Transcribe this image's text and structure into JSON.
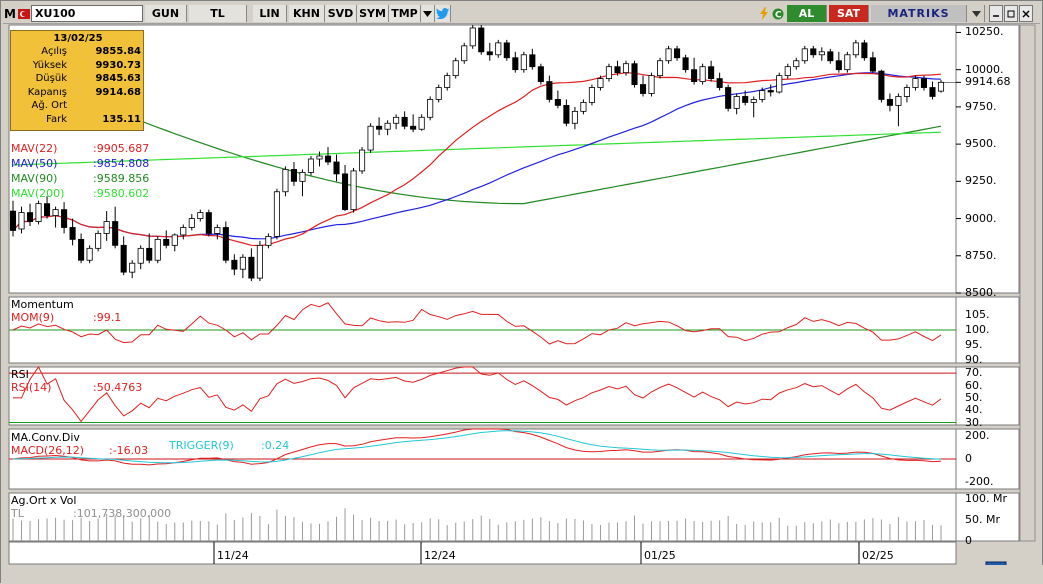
{
  "toolbar": {
    "logo": "M",
    "symbol": "XU100",
    "buttons": [
      "GUN",
      "TL",
      "LIN",
      "KHN",
      "SVD",
      "SYM",
      "TMP"
    ],
    "al": "AL",
    "sat": "SAT",
    "brand": "MATRIKS",
    "colors": {
      "al": "#2e8b2e",
      "sat": "#c8281e",
      "brand_bg": "#c0c0c0"
    }
  },
  "infobox": {
    "date": "13/02/25",
    "rows": [
      {
        "k": "Açılış",
        "v": "9855.84"
      },
      {
        "k": "Yüksek",
        "v": "9930.73"
      },
      {
        "k": "Düşük",
        "v": "9845.63"
      },
      {
        "k": "Kapanış",
        "v": "9914.68"
      },
      {
        "k": "Ağ. Ort",
        "v": ""
      },
      {
        "k": "Fark",
        "v": "135.11"
      }
    ]
  },
  "indicators": {
    "mav22": {
      "label": "MAV(22)",
      "value": ":9905.687",
      "color": "#e02020"
    },
    "mav50": {
      "label": "MAV(50)",
      "value": ":9854.808",
      "color": "#2020e0"
    },
    "mav90": {
      "label": "MAV(90)",
      "value": ":9589.856",
      "color": "#208a20"
    },
    "mav200": {
      "label": "MAV(200)",
      "value": ":9580.602",
      "color": "#30e030"
    }
  },
  "price_axis": {
    "ticks": [
      "10250.",
      "10000.",
      "9914.68",
      "9750.",
      "9500.",
      "9250.",
      "9000.",
      "8750.",
      "8500."
    ],
    "current": "9914.68"
  },
  "momentum": {
    "title": "Momentum",
    "label": "MOM(9)",
    "value": ":99.1",
    "ticks": [
      "105.",
      "100.",
      "95.",
      "90."
    ]
  },
  "rsi": {
    "title": "RSI",
    "label": "RSI(14)",
    "value": ":50.4763",
    "ticks": [
      "70.",
      "60.",
      "50.",
      "40.",
      "30."
    ]
  },
  "macd": {
    "title": "MA.Conv.Div",
    "label": "MACD(26,12)",
    "value": ":-16.03",
    "trigger_label": "TRIGGER(9)",
    "trigger_value": ":0.24",
    "ticks": [
      "200.",
      "0",
      "-200."
    ]
  },
  "volume": {
    "title": "Ag.Ort x Vol",
    "label": "TL",
    "value": ":101,738,300.000",
    "ticks": [
      "100. Mr",
      "50. Mr",
      "0"
    ]
  },
  "date_axis": [
    "11/24",
    "12/24",
    "01/25",
    "02/25"
  ],
  "chart_data": {
    "type": "candlestick",
    "title": "XU100",
    "candles": [
      [
        9050,
        9120,
        8880,
        8920
      ],
      [
        8930,
        9080,
        8900,
        9040
      ],
      [
        9040,
        9100,
        8950,
        8980
      ],
      [
        8980,
        9120,
        8960,
        9100
      ],
      [
        9100,
        9150,
        9000,
        9020
      ],
      [
        9020,
        9080,
        8940,
        9060
      ],
      [
        9060,
        9110,
        8900,
        8940
      ],
      [
        8940,
        9000,
        8820,
        8860
      ],
      [
        8860,
        8900,
        8700,
        8720
      ],
      [
        8720,
        8820,
        8700,
        8800
      ],
      [
        8800,
        8920,
        8780,
        8900
      ],
      [
        8900,
        9050,
        8850,
        8980
      ],
      [
        8980,
        9080,
        8800,
        8820
      ],
      [
        8820,
        8880,
        8620,
        8640
      ],
      [
        8640,
        8720,
        8600,
        8700
      ],
      [
        8700,
        8820,
        8660,
        8800
      ],
      [
        8800,
        8900,
        8700,
        8720
      ],
      [
        8720,
        8880,
        8700,
        8860
      ],
      [
        8860,
        8920,
        8800,
        8820
      ],
      [
        8820,
        8900,
        8780,
        8890
      ],
      [
        8890,
        8960,
        8860,
        8940
      ],
      [
        8940,
        9030,
        8920,
        9000
      ],
      [
        9000,
        9060,
        8980,
        9040
      ],
      [
        9040,
        9060,
        8880,
        8900
      ],
      [
        8900,
        8960,
        8860,
        8940
      ],
      [
        8940,
        8980,
        8700,
        8720
      ],
      [
        8720,
        8760,
        8620,
        8660
      ],
      [
        8660,
        8760,
        8600,
        8740
      ],
      [
        8740,
        8800,
        8580,
        8600
      ],
      [
        8600,
        8850,
        8580,
        8820
      ],
      [
        8820,
        8900,
        8800,
        8880
      ],
      [
        8880,
        9200,
        8860,
        9180
      ],
      [
        9180,
        9350,
        9150,
        9330
      ],
      [
        9330,
        9380,
        9220,
        9250
      ],
      [
        9250,
        9330,
        9150,
        9310
      ],
      [
        9310,
        9420,
        9290,
        9400
      ],
      [
        9400,
        9450,
        9350,
        9420
      ],
      [
        9420,
        9480,
        9360,
        9380
      ],
      [
        9380,
        9430,
        9250,
        9300
      ],
      [
        9300,
        9360,
        9050,
        9060
      ],
      [
        9060,
        9340,
        9040,
        9320
      ],
      [
        9320,
        9480,
        9300,
        9460
      ],
      [
        9460,
        9640,
        9440,
        9620
      ],
      [
        9620,
        9680,
        9560,
        9600
      ],
      [
        9600,
        9660,
        9560,
        9640
      ],
      [
        9640,
        9700,
        9600,
        9680
      ],
      [
        9680,
        9720,
        9600,
        9620
      ],
      [
        9620,
        9700,
        9580,
        9600
      ],
      [
        9600,
        9700,
        9590,
        9680
      ],
      [
        9680,
        9820,
        9660,
        9800
      ],
      [
        9800,
        9900,
        9780,
        9880
      ],
      [
        9880,
        9980,
        9860,
        9960
      ],
      [
        9960,
        10080,
        9940,
        10060
      ],
      [
        10060,
        10180,
        10040,
        10160
      ],
      [
        10160,
        10300,
        10140,
        10280
      ],
      [
        10280,
        10300,
        10100,
        10120
      ],
      [
        10120,
        10180,
        10060,
        10100
      ],
      [
        10100,
        10200,
        10080,
        10180
      ],
      [
        10180,
        10200,
        10060,
        10080
      ],
      [
        10080,
        10120,
        9980,
        10000
      ],
      [
        10000,
        10120,
        9980,
        10100
      ],
      [
        10100,
        10140,
        10000,
        10020
      ],
      [
        10020,
        10040,
        9900,
        9920
      ],
      [
        9920,
        9960,
        9780,
        9800
      ],
      [
        9800,
        9860,
        9740,
        9760
      ],
      [
        9760,
        9800,
        9620,
        9640
      ],
      [
        9640,
        9750,
        9600,
        9720
      ],
      [
        9720,
        9800,
        9700,
        9780
      ],
      [
        9780,
        9900,
        9760,
        9880
      ],
      [
        9880,
        9960,
        9860,
        9940
      ],
      [
        9940,
        10040,
        9920,
        10020
      ],
      [
        10020,
        10060,
        9960,
        9980
      ],
      [
        9980,
        10060,
        9960,
        10040
      ],
      [
        10040,
        10060,
        9880,
        9900
      ],
      [
        9900,
        9960,
        9820,
        9840
      ],
      [
        9840,
        9980,
        9820,
        9960
      ],
      [
        9960,
        10080,
        9940,
        10060
      ],
      [
        10060,
        10160,
        10040,
        10140
      ],
      [
        10140,
        10160,
        10060,
        10080
      ],
      [
        10080,
        10100,
        9980,
        10000
      ],
      [
        10000,
        10080,
        9900,
        9920
      ],
      [
        9920,
        10040,
        9900,
        10020
      ],
      [
        10020,
        10060,
        9920,
        9940
      ],
      [
        9940,
        9980,
        9860,
        9880
      ],
      [
        9880,
        9900,
        9720,
        9740
      ],
      [
        9740,
        9840,
        9700,
        9820
      ],
      [
        9820,
        9860,
        9760,
        9780
      ],
      [
        9780,
        9820,
        9680,
        9800
      ],
      [
        9800,
        9880,
        9780,
        9860
      ],
      [
        9860,
        9900,
        9820,
        9850
      ],
      [
        9850,
        9980,
        9840,
        9960
      ],
      [
        9960,
        10040,
        9940,
        10020
      ],
      [
        10020,
        10080,
        10000,
        10060
      ],
      [
        10060,
        10160,
        10040,
        10140
      ],
      [
        10140,
        10160,
        10080,
        10100
      ],
      [
        10100,
        10150,
        10060,
        10120
      ],
      [
        10120,
        10140,
        10040,
        10060
      ],
      [
        10060,
        10120,
        9980,
        10000
      ],
      [
        10000,
        10120,
        9980,
        10100
      ],
      [
        10100,
        10200,
        10080,
        10180
      ],
      [
        10180,
        10200,
        10060,
        10080
      ],
      [
        10080,
        10120,
        9980,
        9990
      ],
      [
        9990,
        10000,
        9780,
        9800
      ],
      [
        9800,
        9840,
        9720,
        9760
      ],
      [
        9760,
        9840,
        9620,
        9820
      ],
      [
        9820,
        9900,
        9780,
        9880
      ],
      [
        9880,
        9960,
        9860,
        9940
      ],
      [
        9940,
        9960,
        9860,
        9880
      ],
      [
        9880,
        9920,
        9800,
        9820
      ],
      [
        9856,
        9931,
        9846,
        9915
      ]
    ],
    "ylim": [
      8500,
      10300
    ],
    "series": [
      {
        "name": "MAV(22)",
        "last": 9905.687
      },
      {
        "name": "MAV(50)",
        "last": 9854.808
      },
      {
        "name": "MAV(90)",
        "last": 9589.856
      },
      {
        "name": "MAV(200)",
        "last": 9580.602
      }
    ]
  }
}
